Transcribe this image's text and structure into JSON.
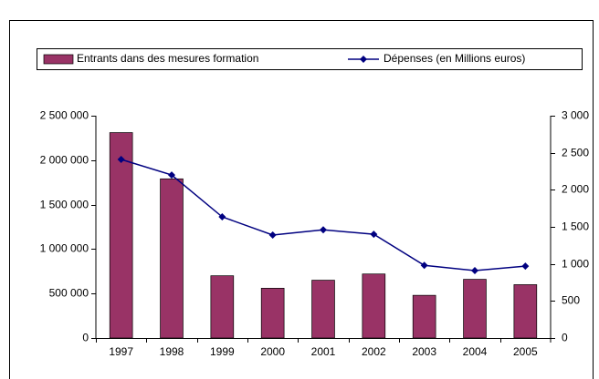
{
  "chart_data": {
    "type": "bar",
    "categories": [
      "1997",
      "1998",
      "1999",
      "2000",
      "2001",
      "2002",
      "2003",
      "2004",
      "2005"
    ],
    "series": [
      {
        "name": "Entrants dans des mesures formation",
        "type": "bar",
        "color": "#993366",
        "values": [
          2310000,
          1790000,
          700000,
          560000,
          650000,
          720000,
          480000,
          660000,
          600000
        ]
      },
      {
        "name": "Dépenses (en Millions euros)",
        "type": "line",
        "axis": "y2",
        "color": "#000080",
        "values": [
          2410,
          2200,
          1635,
          1390,
          1460,
          1400,
          980,
          910,
          970
        ]
      }
    ],
    "ylim": [
      0,
      2500000
    ],
    "yticks": [
      0,
      {
        "value": 500000,
        "label": "500 000"
      },
      {
        "value": 1000000,
        "label": "1 000 000"
      },
      {
        "value": 1500000,
        "label": "1 500 000"
      },
      {
        "value": 2000000,
        "label": "2 000 000"
      },
      {
        "value": 2500000,
        "label": "2 500 000"
      }
    ],
    "y2lim": [
      0,
      3000
    ],
    "y2ticks": [
      0,
      500,
      {
        "value": 1000,
        "label": "1 000"
      },
      {
        "value": 1500,
        "label": "1 500"
      },
      {
        "value": 2000,
        "label": "2 000"
      },
      {
        "value": 2500,
        "label": "2 500"
      },
      {
        "value": 3000,
        "label": "3 000"
      }
    ],
    "grid": false,
    "legend": "top"
  }
}
